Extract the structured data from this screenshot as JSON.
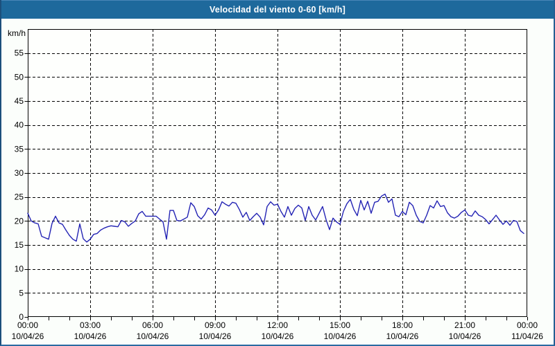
{
  "window": {
    "title": "Velocidad del viento 0-60 [km/h]",
    "titlebar_bg": "#1e699c",
    "border_color": "#1c4f7c",
    "content_bg": "#fbfefb"
  },
  "chart_data": {
    "type": "line",
    "title": "Velocidad del viento 0-60 [km/h]",
    "ylabel": "km/h",
    "xlabel": "",
    "ylim": [
      0,
      60
    ],
    "y_tick_step": 5,
    "grid": true,
    "legend": "none",
    "line_color": "#2323b4",
    "axis_color": "#000000",
    "plot_bg": "#fefffd",
    "x_start": "10/04/26 00:00",
    "x_end": "11/04/26 00:00",
    "x_major_tick_hours": 3,
    "x_minor_tick_hours": 1,
    "sample_interval_minutes": 10,
    "x_axis_labels": [
      {
        "time": "00:00",
        "date": "10/04/26"
      },
      {
        "time": "03:00",
        "date": "10/04/26"
      },
      {
        "time": "06:00",
        "date": "10/04/26"
      },
      {
        "time": "09:00",
        "date": "10/04/26"
      },
      {
        "time": "12:00",
        "date": "10/04/26"
      },
      {
        "time": "15:00",
        "date": "10/04/26"
      },
      {
        "time": "18:00",
        "date": "10/04/26"
      },
      {
        "time": "21:00",
        "date": "10/04/26"
      },
      {
        "time": "00:00",
        "date": "11/04/26"
      }
    ],
    "values": [
      21.6,
      20.0,
      19.6,
      19.4,
      16.8,
      16.5,
      16.2,
      19.5,
      21.0,
      19.6,
      19.3,
      18.1,
      17.0,
      16.2,
      15.8,
      19.4,
      16.3,
      15.6,
      16.2,
      17.2,
      17.4,
      18.1,
      18.5,
      18.8,
      19.0,
      18.9,
      18.8,
      20.1,
      19.8,
      18.9,
      19.5,
      20.0,
      21.5,
      22.0,
      21.0,
      21.0,
      21.0,
      21.0,
      20.4,
      19.8,
      16.2,
      22.2,
      22.2,
      20.1,
      20.0,
      20.4,
      20.8,
      23.8,
      23.0,
      21.1,
      20.4,
      21.3,
      22.7,
      22.3,
      21.2,
      22.3,
      24.0,
      23.5,
      23.1,
      23.9,
      23.7,
      22.4,
      20.8,
      21.8,
      20.1,
      20.9,
      21.6,
      20.8,
      19.2,
      23.0,
      24.0,
      23.3,
      23.5,
      22.0,
      20.8,
      23.0,
      21.2,
      22.6,
      23.3,
      22.7,
      20.1,
      23.0,
      21.2,
      20.2,
      21.6,
      23.0,
      20.3,
      18.2,
      20.6,
      19.8,
      19.3,
      22.0,
      23.6,
      24.5,
      22.4,
      21.1,
      24.3,
      22.3,
      24.1,
      21.6,
      23.9,
      24.1,
      25.2,
      25.6,
      23.9,
      24.6,
      21.2,
      20.9,
      22.0,
      21.3,
      23.9,
      23.2,
      21.2,
      19.9,
      19.6,
      21.2,
      23.2,
      22.7,
      24.2,
      23.0,
      23.2,
      21.7,
      20.9,
      20.6,
      21.0,
      21.8,
      22.3,
      21.2,
      21.0,
      22.1,
      21.2,
      20.9,
      20.3,
      19.4,
      20.3,
      21.2,
      20.2,
      19.3,
      20.0,
      19.1,
      20.1,
      19.9,
      18.0,
      17.4
    ]
  }
}
